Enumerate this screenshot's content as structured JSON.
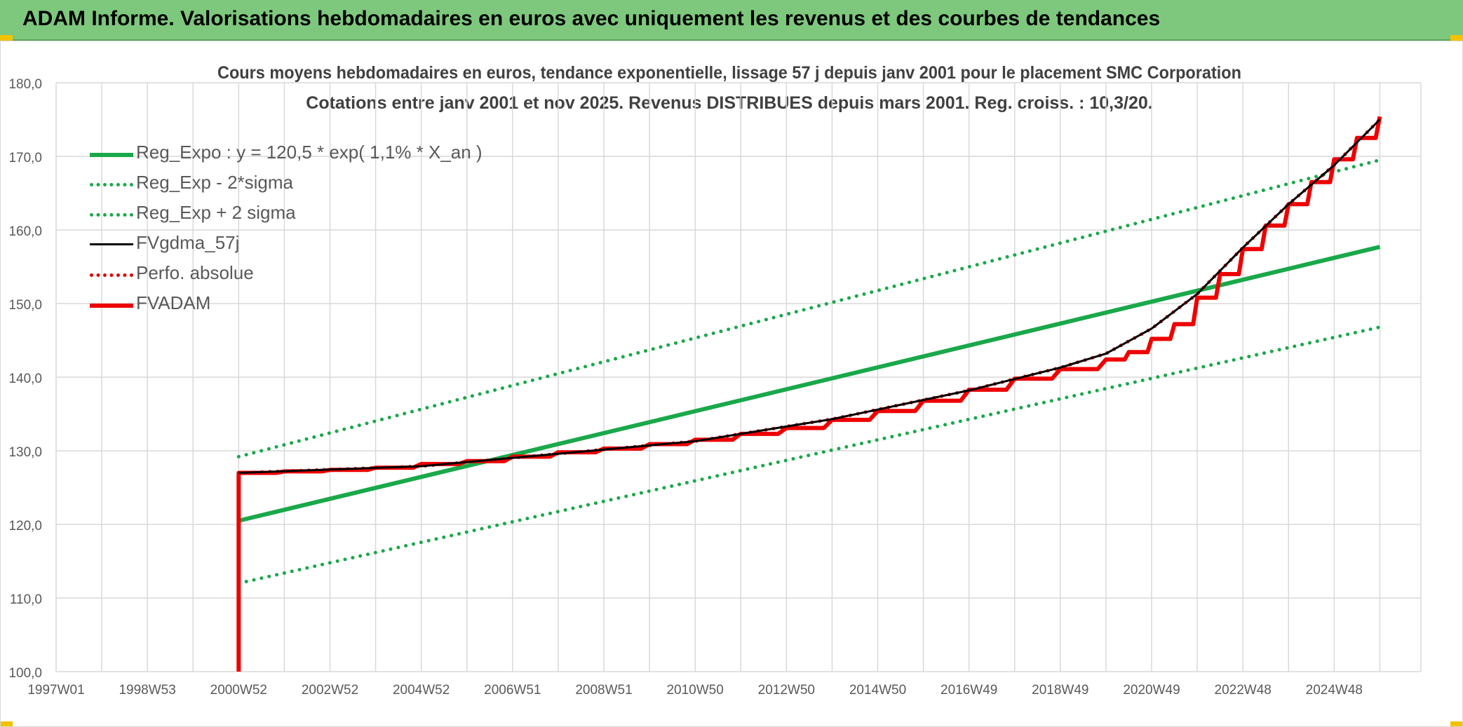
{
  "banner": {
    "title": "ADAM Informe. Valorisations hebdomadaires en euros avec uniquement les revenus et des courbes de tendances"
  },
  "colors": {
    "banner_bg": "#7dc87d",
    "reg_green": "#1aa84a",
    "dot_green": "#1aa84a",
    "fvgdma_black": "#000000",
    "perfo_red": "#e00000",
    "fvadam_red": "#ee0000",
    "grid": "#d9d9d9",
    "axis_text": "#595959",
    "title_text": "#404040"
  },
  "chart_data": {
    "type": "line",
    "title": "Cours moyens hebdomadaires en euros, tendance exponentielle, lissage 57 j depuis janv 2001 pour le placement SMC Corporation",
    "subtitle": "Cotations entre janv 2001 et nov 2025. Revenus DISTRIBUES depuis mars 2001. Reg. croiss. : 10,3/20.",
    "x_range": [
      1997.0,
      2026.9
    ],
    "ylim": [
      100,
      180
    ],
    "y_ticks": [
      {
        "value": 100,
        "label": "100,0"
      },
      {
        "value": 110,
        "label": "110,0"
      },
      {
        "value": 120,
        "label": "120,0"
      },
      {
        "value": 130,
        "label": "130,0"
      },
      {
        "value": 140,
        "label": "140,0"
      },
      {
        "value": 150,
        "label": "150,0"
      },
      {
        "value": 160,
        "label": "160,0"
      },
      {
        "value": 170,
        "label": "170,0"
      },
      {
        "value": 180,
        "label": "180,0"
      }
    ],
    "x_tick_labels": [
      {
        "year": 1997.0,
        "label": "1997W01"
      },
      {
        "year": 1999.0,
        "label": "1998W53"
      },
      {
        "year": 2001.0,
        "label": "2000W52"
      },
      {
        "year": 2003.0,
        "label": "2002W52"
      },
      {
        "year": 2005.0,
        "label": "2004W52"
      },
      {
        "year": 2007.0,
        "label": "2006W51"
      },
      {
        "year": 2009.0,
        "label": "2008W51"
      },
      {
        "year": 2011.0,
        "label": "2010W50"
      },
      {
        "year": 2013.0,
        "label": "2012W50"
      },
      {
        "year": 2015.0,
        "label": "2014W50"
      },
      {
        "year": 2017.0,
        "label": "2016W49"
      },
      {
        "year": 2019.0,
        "label": "2018W49"
      },
      {
        "year": 2021.0,
        "label": "2020W49"
      },
      {
        "year": 2023.0,
        "label": "2022W48"
      },
      {
        "year": 2025.0,
        "label": "2024W48"
      }
    ],
    "grid": true,
    "legend_position": "top-left",
    "series": [
      {
        "name": "Reg_Expo : y = 120,5 * exp( 1,1% *  X_an )",
        "style": "solid-thick",
        "color": "#1aa84a",
        "x": [
          2001.0,
          2026.0
        ],
        "y": [
          120.5,
          157.7
        ]
      },
      {
        "name": "Reg_Exp - 2*sigma",
        "style": "dotted",
        "color": "#1aa84a",
        "x": [
          2001.0,
          2026.0
        ],
        "y": [
          112.0,
          146.8
        ]
      },
      {
        "name": "Reg_Exp + 2 sigma",
        "style": "dotted",
        "color": "#1aa84a",
        "x": [
          2001.0,
          2026.0
        ],
        "y": [
          129.2,
          169.5
        ]
      },
      {
        "name": "FVgdma_57j",
        "style": "solid",
        "color": "#000000",
        "x": [
          2001.0,
          2005.0,
          2008.0,
          2011.0,
          2014.0,
          2017.0,
          2019.0,
          2020.0,
          2021.0,
          2022.0,
          2023.0,
          2024.0,
          2025.0,
          2026.0
        ],
        "y": [
          127.0,
          127.9,
          129.6,
          131.3,
          134.3,
          138.2,
          141.3,
          143.2,
          146.6,
          151.3,
          157.6,
          163.5,
          168.8,
          175.0
        ]
      },
      {
        "name": "Perfo. absolue",
        "style": "dotted",
        "color": "#e00000",
        "x": [
          2001.0,
          2005.0,
          2008.0,
          2011.0,
          2014.0,
          2017.0,
          2019.0,
          2020.0,
          2021.0,
          2022.0,
          2023.0,
          2024.0,
          2025.0,
          2026.0
        ],
        "y": [
          127.0,
          127.9,
          129.6,
          131.3,
          134.3,
          138.2,
          141.3,
          143.2,
          146.6,
          151.3,
          157.6,
          163.5,
          168.8,
          175.0
        ]
      },
      {
        "name": "FVADAM",
        "style": "step-thick",
        "color": "#ee0000",
        "x": [
          2001.0,
          2002.0,
          2003.0,
          2004.0,
          2005.0,
          2006.0,
          2007.0,
          2008.0,
          2009.0,
          2010.0,
          2011.0,
          2012.0,
          2013.0,
          2014.0,
          2015.0,
          2016.0,
          2017.0,
          2018.0,
          2019.0,
          2020.0,
          2020.5,
          2021.0,
          2021.5,
          2022.0,
          2022.5,
          2023.0,
          2023.5,
          2024.0,
          2024.5,
          2025.0,
          2025.5,
          2026.0
        ],
        "y": [
          127.0,
          127.2,
          127.4,
          127.7,
          128.2,
          128.6,
          129.2,
          129.8,
          130.3,
          130.9,
          131.5,
          132.3,
          133.1,
          134.2,
          135.4,
          136.8,
          138.3,
          139.8,
          141.1,
          142.4,
          143.4,
          145.2,
          147.2,
          150.8,
          154.0,
          157.4,
          160.6,
          163.5,
          166.5,
          169.6,
          172.5,
          175.4
        ]
      }
    ]
  }
}
